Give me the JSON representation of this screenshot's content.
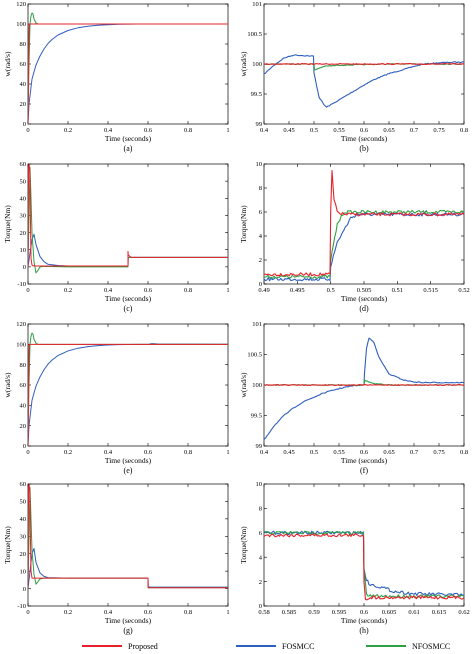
{
  "legend": {
    "items": [
      {
        "label": "Proposed",
        "color": "#e8202a"
      },
      {
        "label": "FOSMCC",
        "color": "#2e5fbf"
      },
      {
        "label": "NFOSMCC",
        "color": "#2f9e44"
      }
    ]
  },
  "chart_data": [
    {
      "id": "a",
      "panel_label": "(a)",
      "type": "line",
      "xlabel": "Time (seconds)",
      "ylabel": "w(rad/s)",
      "xlim": [
        0,
        1
      ],
      "ylim": [
        0,
        120
      ],
      "xticks": [
        "0",
        "0.2",
        "0.4",
        "0.6",
        "0.8",
        "1"
      ],
      "yticks": [
        "0",
        "20",
        "40",
        "60",
        "80",
        "100",
        "120"
      ],
      "series": [
        {
          "name": "FOSMCC",
          "x": [
            0,
            0.005,
            0.02,
            0.04,
            0.06,
            0.08,
            0.1,
            0.12,
            0.15,
            0.2,
            0.25,
            0.3,
            0.35,
            0.4,
            0.45,
            0.5,
            0.55,
            0.6,
            0.65,
            1.0
          ],
          "y": [
            0,
            20,
            45,
            59,
            68,
            75,
            80.5,
            84.5,
            89,
            93.5,
            96.2,
            97.8,
            98.7,
            99.3,
            99.7,
            99.9,
            100,
            100,
            100,
            100
          ]
        },
        {
          "name": "NFOSMCC",
          "x": [
            0,
            0.005,
            0.01,
            0.015,
            0.02,
            0.025,
            0.03,
            0.04,
            0.05,
            0.06,
            0.08,
            1.0
          ],
          "y": [
            0,
            60,
            100,
            108,
            111,
            110,
            105,
            101,
            100,
            100,
            100,
            100
          ]
        },
        {
          "name": "Proposed",
          "x": [
            0,
            0.003,
            0.006,
            0.01,
            0.02,
            1.0
          ],
          "y": [
            0,
            70,
            100,
            100,
            100,
            100
          ]
        }
      ]
    },
    {
      "id": "b",
      "panel_label": "(b)",
      "type": "line",
      "xlabel": "Time (seconds)",
      "ylabel": "w(rad/s)",
      "xlim": [
        0.4,
        0.8
      ],
      "ylim": [
        99,
        101
      ],
      "xticks": [
        "0.4",
        "0.45",
        "0.5",
        "0.55",
        "0.6",
        "0.65",
        "0.7",
        "0.75",
        "0.8"
      ],
      "yticks": [
        "99",
        "99.5",
        "100",
        "100.5",
        "101"
      ],
      "series": [
        {
          "name": "FOSMCC",
          "x": [
            0.4,
            0.42,
            0.44,
            0.46,
            0.48,
            0.499,
            0.5,
            0.51,
            0.52,
            0.525,
            0.54,
            0.56,
            0.58,
            0.6,
            0.62,
            0.65,
            0.68,
            0.7,
            0.72,
            0.75,
            0.78,
            0.8
          ],
          "y": [
            99.83,
            99.98,
            100.1,
            100.15,
            100.14,
            100.13,
            99.85,
            99.45,
            99.32,
            99.28,
            99.35,
            99.45,
            99.55,
            99.65,
            99.74,
            99.84,
            99.91,
            99.96,
            100,
            100.02,
            100.03,
            100.03
          ]
        },
        {
          "name": "NFOSMCC",
          "x": [
            0.4,
            0.5,
            0.501,
            0.51,
            0.52,
            0.55,
            0.6,
            0.65,
            0.7,
            0.75,
            0.8
          ],
          "y": [
            100,
            100,
            99.9,
            99.93,
            99.96,
            99.98,
            99.99,
            100,
            100,
            100,
            100
          ]
        },
        {
          "name": "Proposed",
          "x": [
            0.4,
            0.8
          ],
          "y": [
            100,
            100
          ]
        }
      ]
    },
    {
      "id": "c",
      "panel_label": "(c)",
      "type": "line",
      "xlabel": "Time (seconds)",
      "ylabel": "Torque(Nm)",
      "xlim": [
        0,
        1
      ],
      "ylim": [
        -10,
        60
      ],
      "xticks": [
        "0",
        "0.2",
        "0.4",
        "0.6",
        "0.8",
        "1"
      ],
      "yticks": [
        "-10",
        "0",
        "10",
        "20",
        "30",
        "40",
        "50",
        "60"
      ],
      "series": [
        {
          "name": "FOSMCC",
          "x": [
            0,
            0.01,
            0.02,
            0.03,
            0.04,
            0.06,
            0.08,
            0.1,
            0.15,
            0.2,
            0.3,
            0.5,
            0.501,
            0.52,
            0.6,
            1.0
          ],
          "y": [
            0,
            8,
            16,
            19,
            13,
            6,
            3,
            1.5,
            0.8,
            0.5,
            0.3,
            0.2,
            5.5,
            5.5,
            5.5,
            5.5
          ]
        },
        {
          "name": "NFOSMCC",
          "x": [
            0,
            0.005,
            0.01,
            0.015,
            0.02,
            0.03,
            0.04,
            0.05,
            0.06,
            0.08,
            0.1,
            0.2,
            0.5,
            0.501,
            1.0
          ],
          "y": [
            0,
            30,
            58,
            40,
            20,
            3,
            -3.5,
            -2,
            0,
            0.3,
            0.2,
            0,
            0,
            5.5,
            5.5
          ]
        },
        {
          "name": "Proposed",
          "x": [
            0,
            0.003,
            0.006,
            0.009,
            0.012,
            0.015,
            0.02,
            0.03,
            0.05,
            0.1,
            0.5,
            0.5,
            0.501,
            0.51,
            0.52,
            1.0
          ],
          "y": [
            0,
            58,
            60,
            55,
            30,
            5,
            1,
            0.5,
            0.5,
            0.5,
            0.5,
            9,
            7,
            6,
            5.5,
            5.5
          ]
        }
      ]
    },
    {
      "id": "d",
      "panel_label": "(d)",
      "type": "line",
      "xlabel": "Time (seconds)",
      "ylabel": "Torque(Nm)",
      "xlim": [
        0.49,
        0.52
      ],
      "ylim": [
        0,
        10
      ],
      "xticks": [
        "0.49",
        "0.495",
        "0.5",
        "0.505",
        "0.51",
        "0.515",
        "0.52"
      ],
      "yticks": [
        "0",
        "2",
        "4",
        "6",
        "8",
        "10"
      ],
      "series": [
        {
          "name": "FOSMCC",
          "x": [
            0.49,
            0.4999,
            0.5,
            0.501,
            0.502,
            0.503,
            0.504,
            0.52
          ],
          "y": [
            0.4,
            0.4,
            1.5,
            3.5,
            4.5,
            5.5,
            5.8,
            5.8
          ]
        },
        {
          "name": "NFOSMCC",
          "x": [
            0.49,
            0.4999,
            0.5,
            0.501,
            0.502,
            0.503,
            0.52
          ],
          "y": [
            0.6,
            0.6,
            2,
            5,
            6,
            6,
            6
          ]
        },
        {
          "name": "Proposed",
          "x": [
            0.49,
            0.4999,
            0.5,
            0.5002,
            0.5005,
            0.501,
            0.502,
            0.52
          ],
          "y": [
            0.8,
            0.8,
            6,
            9.4,
            7,
            6,
            5.8,
            5.8
          ]
        }
      ]
    },
    {
      "id": "e",
      "panel_label": "(e)",
      "type": "line",
      "xlabel": "Time (seconds)",
      "ylabel": "w(rad/s)",
      "xlim": [
        0,
        1
      ],
      "ylim": [
        0,
        120
      ],
      "xticks": [
        "0",
        "0.2",
        "0.4",
        "0.6",
        "0.8",
        "1"
      ],
      "yticks": [
        "0",
        "20",
        "40",
        "60",
        "80",
        "100",
        "120"
      ],
      "series": [
        {
          "name": "FOSMCC",
          "x": [
            0,
            0.005,
            0.02,
            0.04,
            0.06,
            0.08,
            0.1,
            0.12,
            0.15,
            0.2,
            0.25,
            0.3,
            0.35,
            0.4,
            0.45,
            0.5,
            0.55,
            0.6,
            0.62,
            0.65,
            1.0
          ],
          "y": [
            0,
            20,
            45,
            59,
            68,
            75,
            80.5,
            84.5,
            89,
            93.5,
            96.2,
            97.8,
            98.7,
            99.3,
            99.7,
            99.9,
            100,
            100,
            100.7,
            100.3,
            100.1
          ]
        },
        {
          "name": "NFOSMCC",
          "x": [
            0,
            0.005,
            0.01,
            0.015,
            0.02,
            0.025,
            0.03,
            0.04,
            0.05,
            0.06,
            0.08,
            1.0
          ],
          "y": [
            0,
            60,
            100,
            108,
            111,
            110,
            105,
            101,
            100,
            100,
            100,
            100
          ]
        },
        {
          "name": "Proposed",
          "x": [
            0,
            0.003,
            0.006,
            0.01,
            0.02,
            1.0
          ],
          "y": [
            0,
            70,
            100,
            100,
            100,
            100
          ]
        }
      ]
    },
    {
      "id": "f",
      "panel_label": "(f)",
      "type": "line",
      "xlabel": "Time (seconds)",
      "ylabel": "w(rad/s)",
      "xlim": [
        0.4,
        0.8
      ],
      "ylim": [
        99,
        101
      ],
      "xticks": [
        "0.4",
        "0.45",
        "0.5",
        "0.55",
        "0.6",
        "0.65",
        "0.7",
        "0.75",
        "0.8"
      ],
      "yticks": [
        "99",
        "99.5",
        "100",
        "100.5",
        "101"
      ],
      "series": [
        {
          "name": "FOSMCC",
          "x": [
            0.4,
            0.42,
            0.44,
            0.46,
            0.48,
            0.5,
            0.52,
            0.54,
            0.56,
            0.58,
            0.6,
            0.601,
            0.605,
            0.61,
            0.62,
            0.63,
            0.65,
            0.68,
            0.7,
            0.72,
            0.75,
            0.8
          ],
          "y": [
            99.1,
            99.33,
            99.5,
            99.63,
            99.73,
            99.8,
            99.87,
            99.92,
            99.96,
            99.99,
            100,
            100.2,
            100.6,
            100.77,
            100.7,
            100.45,
            100.18,
            100.08,
            100.05,
            100.04,
            100.04,
            100.04
          ]
        },
        {
          "name": "NFOSMCC",
          "x": [
            0.4,
            0.6,
            0.601,
            0.61,
            0.62,
            0.65,
            0.7,
            0.8
          ],
          "y": [
            100,
            100,
            100.08,
            100.05,
            100.02,
            100,
            100,
            100
          ]
        },
        {
          "name": "Proposed",
          "x": [
            0.4,
            0.8
          ],
          "y": [
            100,
            100
          ]
        }
      ]
    },
    {
      "id": "g",
      "panel_label": "(g)",
      "type": "line",
      "xlabel": "Time (seconds)",
      "ylabel": "Torque(Nm)",
      "xlim": [
        0,
        1
      ],
      "ylim": [
        -10,
        60
      ],
      "xticks": [
        "0",
        "0.2",
        "0.4",
        "0.6",
        "0.8",
        "1"
      ],
      "yticks": [
        "-10",
        "0",
        "10",
        "20",
        "30",
        "40",
        "50",
        "60"
      ],
      "series": [
        {
          "name": "FOSMCC",
          "x": [
            0,
            0.01,
            0.02,
            0.03,
            0.04,
            0.06,
            0.08,
            0.1,
            0.2,
            0.6,
            0.601,
            0.62,
            1.0
          ],
          "y": [
            0,
            10,
            20,
            23,
            15,
            9,
            7,
            6.3,
            6,
            6,
            1,
            0.8,
            0.8
          ]
        },
        {
          "name": "NFOSMCC",
          "x": [
            0,
            0.005,
            0.01,
            0.015,
            0.02,
            0.03,
            0.04,
            0.05,
            0.06,
            0.08,
            0.1,
            0.2,
            0.6,
            0.601,
            1.0
          ],
          "y": [
            0,
            30,
            58,
            40,
            22,
            8,
            2.5,
            4,
            5.5,
            6,
            6,
            6,
            6,
            0.5,
            0.5
          ]
        },
        {
          "name": "Proposed",
          "x": [
            0,
            0.003,
            0.006,
            0.009,
            0.012,
            0.015,
            0.02,
            0.03,
            0.05,
            0.1,
            0.6,
            0.601,
            1.0
          ],
          "y": [
            0,
            58,
            60,
            55,
            30,
            10,
            6,
            6,
            6,
            6,
            6,
            0.5,
            0.5
          ]
        }
      ]
    },
    {
      "id": "h",
      "panel_label": "(h)",
      "type": "line",
      "xlabel": "Time (seconds)",
      "ylabel": "Torque(Nm)",
      "xlim": [
        0.58,
        0.62
      ],
      "ylim": [
        0,
        10
      ],
      "xticks": [
        "0.58",
        "0.585",
        "0.59",
        "0.595",
        "0.6",
        "0.605",
        "0.61",
        "0.615",
        "0.62"
      ],
      "yticks": [
        "0",
        "2",
        "4",
        "6",
        "8",
        "10"
      ],
      "series": [
        {
          "name": "FOSMCC",
          "x": [
            0.58,
            0.5999,
            0.6,
            0.6005,
            0.601,
            0.603,
            0.606,
            0.61,
            0.62
          ],
          "y": [
            6,
            6,
            3,
            2.2,
            1.8,
            1.6,
            1.2,
            1,
            0.9
          ]
        },
        {
          "name": "NFOSMCC",
          "x": [
            0.58,
            0.5999,
            0.6,
            0.6005,
            0.601,
            0.62
          ],
          "y": [
            6,
            6,
            3,
            1,
            0.8,
            0.8
          ]
        },
        {
          "name": "Proposed",
          "x": [
            0.58,
            0.5999,
            0.6,
            0.6003,
            0.601,
            0.62
          ],
          "y": [
            5.8,
            5.8,
            2,
            0.5,
            0.7,
            0.7
          ]
        }
      ]
    }
  ]
}
